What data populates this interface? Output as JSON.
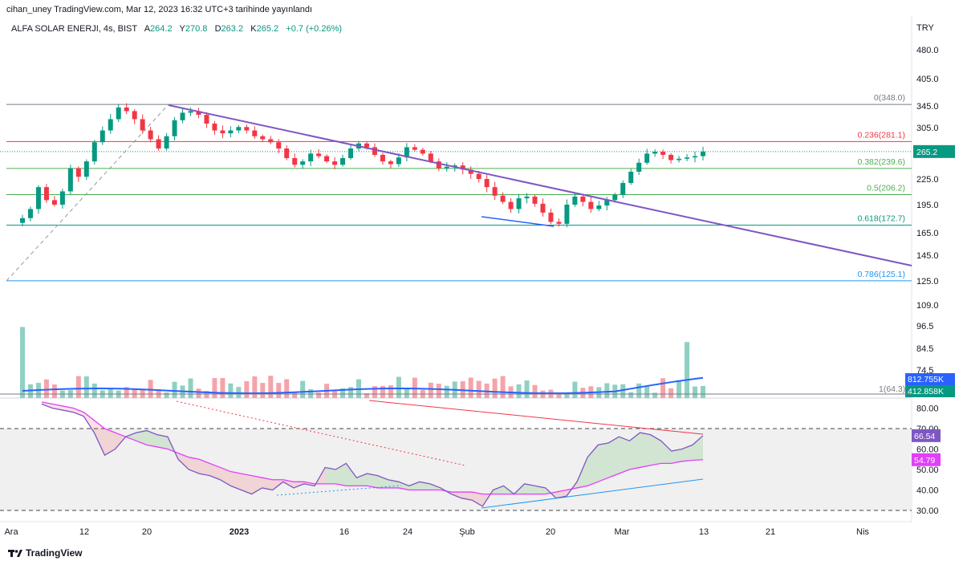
{
  "header": {
    "publisher": "cihan_uney TradingView.com, Mar 12, 2023 16:32 UTC+3 tarihinde yayınlandı"
  },
  "legend": {
    "symbol": "ALFA SOLAR ENERJI, 4s, BIST",
    "a_label": "A",
    "a_value": "264.2",
    "y_label": "Y",
    "y_value": "270.8",
    "d_label": "D",
    "d_value": "263.2",
    "k_label": "K",
    "k_value": "265.2",
    "change": "+0.7 (+0.26%)"
  },
  "footer": {
    "brand": "TradingView"
  },
  "colors": {
    "up": "#089981",
    "down": "#f23645",
    "trend": "#7e57c2",
    "fib": "#787b86",
    "rsi": "#7e57c2",
    "rsi_ma": "#e040fb",
    "vol_ma": "#2962ff"
  },
  "chart_data": [
    {
      "type": "candlestick",
      "currency": "TRY",
      "y_ticks": [
        "480.0",
        "405.0",
        "345.0",
        "305.0",
        "265.2",
        "225.0",
        "195.0",
        "165.0",
        "145.0",
        "125.0"
      ],
      "price_levels": [
        480,
        405,
        345,
        305,
        265.2,
        225,
        195,
        165,
        145,
        125
      ],
      "last_price": "265.2",
      "x_ticks": [
        "Ara",
        "12",
        "20",
        "2023",
        "16",
        "24",
        "Şub",
        "20",
        "Mar",
        "13",
        "21",
        "Nis"
      ],
      "fib_levels": [
        {
          "label": "0(348.0)",
          "price": 348.0,
          "color": "#787b86"
        },
        {
          "label": "0.236(281.1)",
          "price": 281.1,
          "color": "#f23645"
        },
        {
          "label": "0.382(239.6)",
          "price": 239.6,
          "color": "#4caf50"
        },
        {
          "label": "0.5(206.2)",
          "price": 206.2,
          "color": "#4caf50"
        },
        {
          "label": "0.618(172.7)",
          "price": 172.7,
          "color": "#089981"
        },
        {
          "label": "0.786(125.1)",
          "price": 125.1,
          "color": "#2196f3"
        }
      ],
      "closes": [
        180,
        190,
        215,
        200,
        195,
        210,
        240,
        228,
        250,
        280,
        300,
        320,
        342,
        335,
        320,
        300,
        285,
        270,
        290,
        318,
        332,
        335,
        328,
        312,
        300,
        295,
        300,
        306,
        300,
        290,
        285,
        280,
        270,
        255,
        245,
        250,
        262,
        258,
        250,
        245,
        255,
        270,
        278,
        272,
        260,
        250,
        246,
        256,
        272,
        268,
        262,
        250,
        240,
        242,
        244,
        238,
        232,
        225,
        215,
        205,
        198,
        190,
        202,
        204,
        196,
        186,
        176,
        174,
        195,
        204,
        198,
        190,
        194,
        200,
        206,
        220,
        235,
        248,
        262,
        265,
        260,
        252,
        254,
        256,
        258,
        265.2
      ],
      "volume_ticks": [
        "109.0",
        "96.5",
        "84.5",
        "74.5"
      ],
      "volume_ma_value": "812.755K",
      "volume_last": "412.858K",
      "volume_fib": "1(64.3)"
    },
    {
      "type": "line",
      "name": "RSI",
      "y_ticks": [
        "80.00",
        "70.00",
        "60.00",
        "50.00",
        "40.00",
        "30.00"
      ],
      "rsi_value": "66.54",
      "rsi_ma_value": "54.79",
      "rsi": [
        82,
        80,
        79,
        78,
        76,
        68,
        57,
        60,
        66,
        68,
        69,
        67,
        66,
        55,
        50,
        48,
        47,
        45,
        42,
        40,
        38,
        41,
        40,
        44,
        41,
        43,
        42,
        51,
        50,
        53,
        46,
        48,
        47,
        45,
        44,
        42,
        44,
        43,
        41,
        38,
        36,
        35,
        32,
        40,
        42,
        38,
        43,
        42,
        41,
        36,
        37,
        44,
        56,
        62,
        63,
        66,
        64,
        68,
        67,
        64,
        59,
        60,
        62,
        66.54
      ],
      "rsi_ma": [
        83,
        82,
        81,
        80,
        78,
        74,
        70,
        68,
        66,
        64,
        62,
        61,
        60,
        58,
        56,
        55,
        53,
        51,
        49,
        48,
        47,
        46,
        45,
        45,
        44,
        44,
        43,
        43,
        43,
        42,
        42,
        42,
        41,
        41,
        41,
        40,
        40,
        40,
        40,
        39,
        39,
        39,
        38,
        38,
        38,
        38,
        38,
        38,
        38,
        39,
        40,
        41,
        42,
        44,
        46,
        48,
        50,
        51,
        52,
        53,
        53,
        54,
        54.5,
        54.79
      ]
    }
  ]
}
